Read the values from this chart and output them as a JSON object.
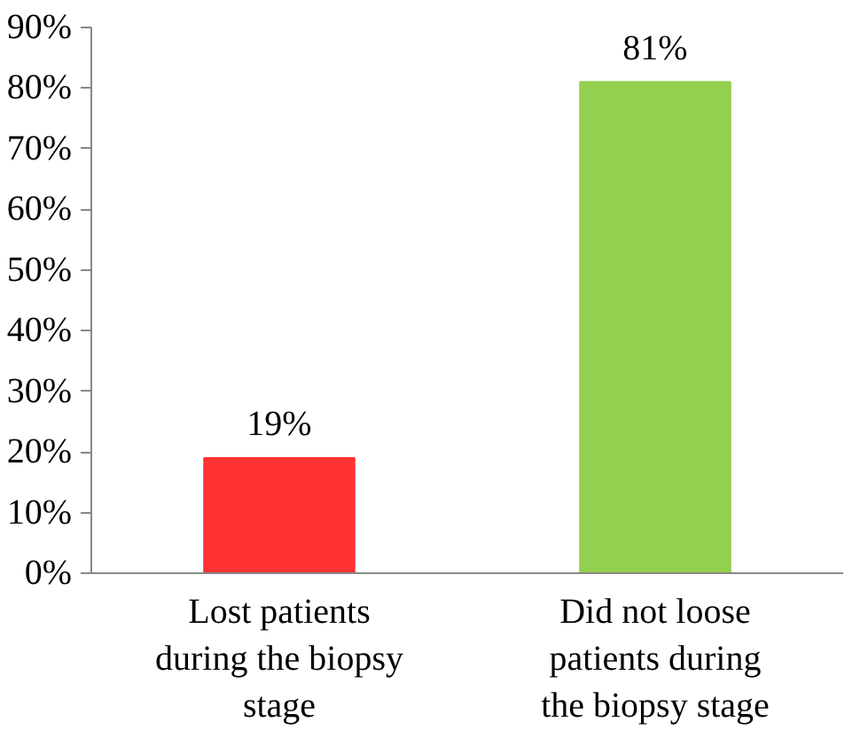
{
  "chart_data": {
    "type": "bar",
    "categories": [
      "Lost patients during the biopsy stage",
      "Did not loose patients during the biopsy stage"
    ],
    "values": [
      19,
      81
    ],
    "colors": [
      "#ff3333",
      "#92d050"
    ],
    "value_labels": [
      "19%",
      "81%"
    ],
    "ylim": [
      0,
      90
    ],
    "yticks": [
      {
        "value": 0,
        "label": "0%"
      },
      {
        "value": 10,
        "label": "10%"
      },
      {
        "value": 20,
        "label": "20%"
      },
      {
        "value": 30,
        "label": "30%"
      },
      {
        "value": 40,
        "label": "40%"
      },
      {
        "value": 50,
        "label": "50%"
      },
      {
        "value": 60,
        "label": "60%"
      },
      {
        "value": 70,
        "label": "70%"
      },
      {
        "value": 80,
        "label": "80%"
      },
      {
        "value": 90,
        "label": "90%"
      }
    ],
    "grid": false
  }
}
